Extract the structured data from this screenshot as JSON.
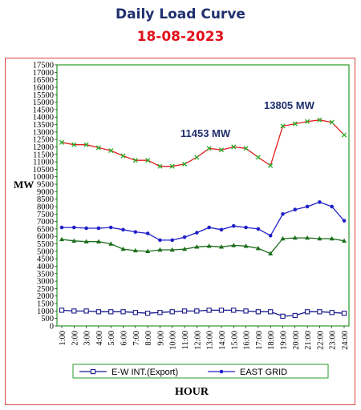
{
  "title": "Daily Load Curve",
  "date": "18-08-2023",
  "chart_data": {
    "type": "line",
    "ylabel": "MW",
    "xlabel": "HOUR",
    "ylim": [
      0,
      17500
    ],
    "ytick_step": 500,
    "x": [
      "1:00",
      "2:00",
      "3:00",
      "4:00",
      "5:00",
      "6:00",
      "7:00",
      "8:00",
      "9:00",
      "10:00",
      "11:00",
      "12:00",
      "13:00",
      "14:00",
      "15:00",
      "16:00",
      "17:00",
      "18:00",
      "19:00",
      "20:00",
      "21:00",
      "22:00",
      "23:00",
      "24:00"
    ],
    "series": [
      {
        "name": "E-W INT.(Export)",
        "color": "#1a1a8c",
        "marker": "square-open",
        "values": [
          1050,
          1000,
          1000,
          950,
          950,
          950,
          900,
          850,
          900,
          950,
          1000,
          1000,
          1050,
          1050,
          1050,
          1000,
          950,
          950,
          650,
          700,
          950,
          950,
          900,
          850
        ]
      },
      {
        "name": "EAST GRID",
        "color": "#2020c8",
        "marker": "dot",
        "values": [
          6600,
          6600,
          6550,
          6550,
          6600,
          6450,
          6300,
          6200,
          5750,
          5750,
          5950,
          6250,
          6600,
          6450,
          6700,
          6600,
          6500,
          6050,
          7500,
          7800,
          8000,
          8300,
          8000,
          7050
        ]
      },
      {
        "name": "",
        "color": "#1b6e1b",
        "marker": "triangle",
        "values": [
          5800,
          5700,
          5650,
          5650,
          5500,
          5150,
          5050,
          5000,
          5100,
          5100,
          5150,
          5300,
          5350,
          5300,
          5400,
          5350,
          5200,
          4850,
          5850,
          5900,
          5900,
          5850,
          5850,
          5700
        ]
      },
      {
        "name": "",
        "color": "#e02020",
        "marker": "x-green",
        "values": [
          12300,
          12150,
          12150,
          11950,
          11750,
          11400,
          11100,
          11100,
          10700,
          10700,
          10850,
          11300,
          11900,
          11800,
          12000,
          11900,
          11300,
          10750,
          13400,
          13550,
          13700,
          13805,
          13650,
          12800
        ]
      }
    ],
    "annotations": [
      "11453 MW",
      "13805 MW"
    ],
    "legend_position": "bottom"
  }
}
